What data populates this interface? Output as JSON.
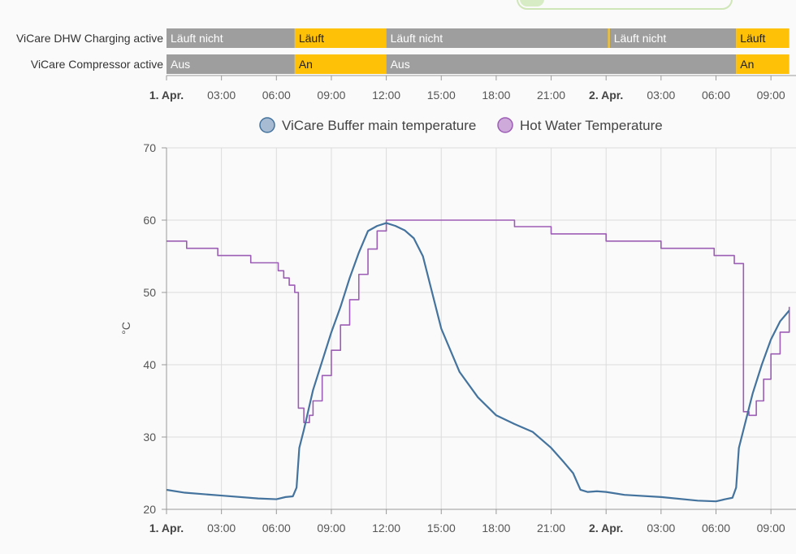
{
  "timeline": {
    "rows": [
      {
        "label": "ViCare DHW Charging active",
        "segments": [
          {
            "start": 0,
            "end": 7.0,
            "state": "off",
            "text": "Läuft nicht"
          },
          {
            "start": 7.0,
            "end": 12.0,
            "state": "on",
            "text": "Läuft"
          },
          {
            "start": 12.0,
            "end": 24.1,
            "state": "off",
            "text": "Läuft nicht"
          },
          {
            "start": 24.1,
            "end": 24.2,
            "state": "on",
            "text": ""
          },
          {
            "start": 24.2,
            "end": 31.1,
            "state": "off",
            "text": "Läuft nicht"
          },
          {
            "start": 31.1,
            "end": 34.0,
            "state": "on",
            "text": "Läuft"
          }
        ]
      },
      {
        "label": "ViCare Compressor active",
        "segments": [
          {
            "start": 0,
            "end": 7.0,
            "state": "off",
            "text": "Aus"
          },
          {
            "start": 7.0,
            "end": 12.0,
            "state": "on",
            "text": "An"
          },
          {
            "start": 12.0,
            "end": 31.1,
            "state": "off",
            "text": "Aus"
          },
          {
            "start": 31.1,
            "end": 34.0,
            "state": "on",
            "text": "An"
          }
        ]
      }
    ],
    "colors": {
      "on": "#ffc107",
      "off": "#9e9e9e"
    }
  },
  "chart_data": {
    "type": "line",
    "ylabel": "°C",
    "ylim": [
      20,
      70
    ],
    "xlim": [
      0,
      34
    ],
    "x_unit": "hours since 1. Apr. 00:00",
    "x_ticks": [
      {
        "x": 0,
        "label": "1. Apr.",
        "bold": true
      },
      {
        "x": 3,
        "label": "03:00"
      },
      {
        "x": 6,
        "label": "06:00"
      },
      {
        "x": 9,
        "label": "09:00"
      },
      {
        "x": 12,
        "label": "12:00"
      },
      {
        "x": 15,
        "label": "15:00"
      },
      {
        "x": 18,
        "label": "18:00"
      },
      {
        "x": 21,
        "label": "21:00"
      },
      {
        "x": 24,
        "label": "2. Apr.",
        "bold": true
      },
      {
        "x": 27,
        "label": "03:00"
      },
      {
        "x": 30,
        "label": "06:00"
      },
      {
        "x": 33,
        "label": "09:00"
      }
    ],
    "y_ticks": [
      20,
      30,
      40,
      50,
      60,
      70
    ],
    "grid": true,
    "legend_position": "top-center",
    "series": [
      {
        "name": "ViCare Buffer main temperature",
        "color": "#44739e",
        "step": false,
        "x": [
          0,
          1,
          3,
          5,
          6.0,
          6.5,
          6.9,
          7.1,
          7.25,
          7.5,
          8,
          8.5,
          9,
          9.5,
          10,
          10.5,
          11,
          11.5,
          12.0,
          12.5,
          13.0,
          13.5,
          14.0,
          14.5,
          15.0,
          16.0,
          17.0,
          18.0,
          19.0,
          20.0,
          21.0,
          21.7,
          22.2,
          22.6,
          23.0,
          23.5,
          24.0,
          25.0,
          27.0,
          29.0,
          30.0,
          30.5,
          30.9,
          31.1,
          31.25,
          31.5,
          32.0,
          32.5,
          33.0,
          33.5,
          34.0
        ],
        "y": [
          22.7,
          22.3,
          21.9,
          21.5,
          21.4,
          21.7,
          21.8,
          23.0,
          28.5,
          31.0,
          36.5,
          40.5,
          44.5,
          48.0,
          52.0,
          55.5,
          58.5,
          59.2,
          59.6,
          59.2,
          58.6,
          57.5,
          55.0,
          50.0,
          45.0,
          39.0,
          35.5,
          33.0,
          31.8,
          30.7,
          28.5,
          26.5,
          25.0,
          22.7,
          22.4,
          22.5,
          22.4,
          22.0,
          21.7,
          21.2,
          21.1,
          21.4,
          21.6,
          23.0,
          28.5,
          31.0,
          36.0,
          40.0,
          43.5,
          46.0,
          47.5
        ]
      },
      {
        "name": "Hot Water Temperature",
        "color": "#9c5db5",
        "step": true,
        "x": [
          0,
          1.1,
          2.8,
          4.6,
          6.1,
          6.4,
          6.7,
          7.0,
          7.2,
          7.5,
          7.8,
          8.0,
          8.5,
          9.0,
          9.5,
          10.0,
          10.5,
          11.0,
          11.5,
          12.0,
          19.0,
          21.0,
          24.0,
          27.0,
          29.9,
          31.0,
          31.5,
          31.8,
          32.2,
          32.6,
          33.0,
          33.5,
          34.0
        ],
        "y": [
          57.1,
          56.1,
          55.1,
          54.1,
          53.0,
          52.0,
          51.0,
          50.0,
          34.0,
          32.0,
          33.0,
          35.0,
          38.5,
          42.0,
          45.5,
          49.0,
          52.5,
          56.0,
          58.5,
          60.0,
          59.1,
          58.1,
          57.1,
          56.1,
          55.1,
          54.0,
          33.5,
          33.0,
          35.0,
          38.0,
          41.5,
          44.5,
          48.0
        ]
      }
    ]
  }
}
